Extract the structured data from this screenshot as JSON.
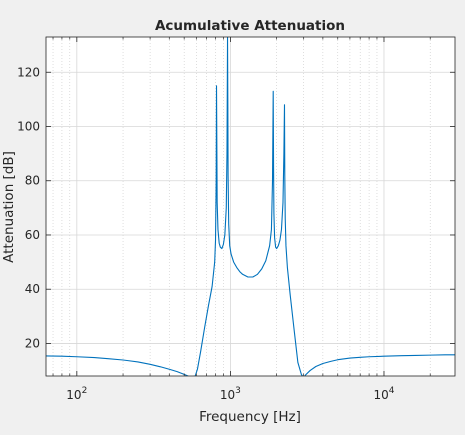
{
  "chart_data": {
    "type": "line",
    "title": "Acumulative Attenuation",
    "xlabel": "Frequency [Hz]",
    "ylabel": "Attenuation [dB]",
    "xscale": "log",
    "xlim": [
      63,
      29000
    ],
    "ylim": [
      8,
      133
    ],
    "grid": true,
    "minor_grid": true,
    "x_ticks": [
      {
        "value": 100,
        "base": "10",
        "exp": "2"
      },
      {
        "value": 1000,
        "base": "10",
        "exp": "3"
      },
      {
        "value": 10000,
        "base": "10",
        "exp": "4"
      }
    ],
    "y_ticks": [
      20,
      40,
      60,
      80,
      100,
      120
    ],
    "line_color": "#0072bd",
    "series": [
      {
        "x": [
          63,
          80,
          100,
          130,
          160,
          200,
          250,
          300,
          350,
          400,
          450,
          500,
          550,
          590,
          610,
          640,
          680,
          720,
          760,
          790,
          800,
          808,
          812,
          820,
          830,
          845,
          860,
          880,
          900,
          920,
          940,
          950,
          958,
          962,
          966,
          975,
          990,
          1010,
          1050,
          1100,
          1150,
          1200,
          1300,
          1400,
          1500,
          1600,
          1700,
          1800,
          1850,
          1880,
          1900,
          1910,
          1920,
          1940,
          1970,
          2000,
          2050,
          2100,
          2150,
          2200,
          2230,
          2250,
          2260,
          2275,
          2300,
          2350,
          2450,
          2600,
          2750,
          2900,
          3000,
          3100,
          3300,
          3600,
          4000,
          4500,
          5000,
          6000,
          7000,
          8000,
          10000,
          13000,
          16000,
          20000,
          25000,
          29000
        ],
        "y": [
          15.4,
          15.3,
          15.1,
          14.8,
          14.4,
          13.9,
          13.2,
          12.3,
          11.4,
          10.5,
          9.6,
          8.6,
          7.6,
          8,
          10.5,
          17,
          26,
          34,
          41,
          50,
          58,
          80,
          115,
          72,
          62,
          57,
          55.5,
          55,
          56.5,
          60,
          70,
          90,
          133,
          110,
          82,
          64,
          56,
          53,
          50,
          48,
          46.5,
          45.5,
          44.5,
          44.5,
          45.5,
          47.5,
          50.5,
          56,
          62,
          80,
          113,
          85,
          68,
          59,
          55.5,
          55,
          56,
          58,
          62,
          72,
          90,
          108,
          82,
          66,
          56,
          48,
          38,
          25,
          13,
          8.5,
          7.5,
          8.5,
          10,
          11.5,
          12.6,
          13.4,
          14,
          14.6,
          14.9,
          15.1,
          15.3,
          15.5,
          15.6,
          15.7,
          15.8,
          15.8
        ]
      }
    ]
  }
}
